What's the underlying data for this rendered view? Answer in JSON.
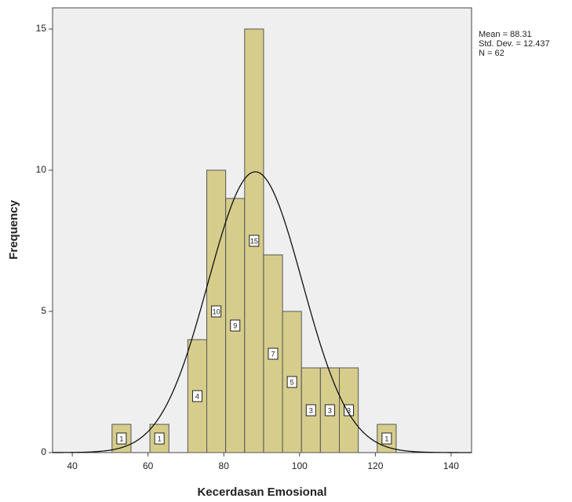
{
  "chart_data": {
    "type": "histogram",
    "x_label": "Kecerdasan Emosional",
    "y_label": "Frequency",
    "bins": [
      50.5,
      55.5,
      60.5,
      65.5,
      70.5,
      75.5,
      80.5,
      85.5,
      90.5,
      95.5,
      100.5,
      105.5,
      110.5,
      115.5,
      120.5,
      125.5
    ],
    "counts": [
      1,
      0,
      1,
      0,
      4,
      10,
      9,
      15,
      7,
      5,
      3,
      3,
      3,
      0,
      1
    ],
    "color": "#d6cd8c",
    "stats": [
      {
        "value": 88.31,
        "label": "Mean = 88.31"
      },
      {
        "value": 12.437,
        "label": "Std. Dev. = 12.437"
      },
      {
        "value": 62,
        "label": "N = 62"
      }
    ],
    "xlim": [
      34.8,
      145.4
    ],
    "ylim": [
      0,
      15.75
    ],
    "xticks": [
      40,
      60,
      80,
      100,
      120,
      140
    ],
    "yticks": [
      0,
      5,
      10,
      15
    ]
  }
}
